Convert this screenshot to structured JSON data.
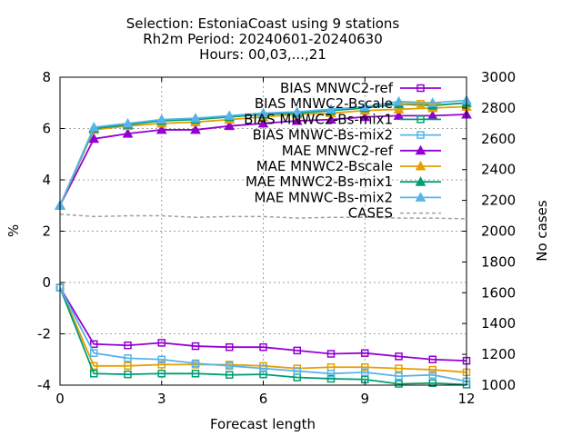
{
  "title": {
    "line1": "Selection: EstoniaCoast using     9 stations",
    "line2": "Rh2m   Period: 20240601-20240630",
    "line3": "Hours: 00,03,...,21"
  },
  "chart_data": {
    "type": "line",
    "xlabel": "Forecast length",
    "ylabel": "%",
    "y2label": "No cases",
    "xlim": [
      0,
      12
    ],
    "ylim": [
      -4,
      8
    ],
    "y2lim": [
      1000,
      3000
    ],
    "xticks": [
      0,
      3,
      6,
      9,
      12
    ],
    "yticks": [
      -4,
      -2,
      0,
      2,
      4,
      6,
      8
    ],
    "y2ticks": [
      1000,
      1200,
      1400,
      1600,
      1800,
      2000,
      2200,
      2400,
      2600,
      2800,
      3000
    ],
    "grid": true,
    "legend_position": "top-right",
    "x": [
      0,
      1,
      2,
      3,
      4,
      5,
      6,
      7,
      8,
      9,
      10,
      11,
      12
    ],
    "series": [
      {
        "name": "BIAS MNWC2-ref",
        "color": "#9400d3",
        "marker": "square",
        "axis": "y",
        "values": [
          -0.2,
          -2.4,
          -2.45,
          -2.35,
          -2.48,
          -2.52,
          -2.52,
          -2.65,
          -2.78,
          -2.75,
          -2.88,
          -3.0,
          -3.05
        ]
      },
      {
        "name": "BIAS MNWC2-Bscale",
        "color": "#e69f00",
        "marker": "square",
        "axis": "y",
        "values": [
          -0.2,
          -3.25,
          -3.25,
          -3.2,
          -3.2,
          -3.2,
          -3.25,
          -3.35,
          -3.3,
          -3.3,
          -3.35,
          -3.4,
          -3.5
        ]
      },
      {
        "name": "BIAS MNWC2-Bs-mix1",
        "color": "#009e73",
        "marker": "square",
        "axis": "y",
        "values": [
          -0.2,
          -3.55,
          -3.58,
          -3.55,
          -3.55,
          -3.6,
          -3.58,
          -3.7,
          -3.75,
          -3.78,
          -3.95,
          -3.92,
          -3.98
        ]
      },
      {
        "name": "BIAS MNWC-Bs-mix2",
        "color": "#56b4e9",
        "marker": "square",
        "axis": "y",
        "values": [
          -0.2,
          -2.75,
          -2.95,
          -3.0,
          -3.15,
          -3.25,
          -3.35,
          -3.45,
          -3.55,
          -3.5,
          -3.65,
          -3.6,
          -3.85
        ]
      },
      {
        "name": "MAE MNWC2-ref",
        "color": "#9400d3",
        "marker": "triangle",
        "axis": "y",
        "values": [
          3.0,
          5.6,
          5.8,
          5.95,
          5.95,
          6.1,
          6.2,
          6.3,
          6.35,
          6.45,
          6.5,
          6.5,
          6.55
        ]
      },
      {
        "name": "MAE MNWC2-Bscale",
        "color": "#e69f00",
        "marker": "triangle",
        "axis": "y",
        "values": [
          3.0,
          5.95,
          6.1,
          6.2,
          6.25,
          6.35,
          6.45,
          6.55,
          6.6,
          6.7,
          6.75,
          6.8,
          6.85
        ]
      },
      {
        "name": "MAE MNWC2-Bs-mix1",
        "color": "#009e73",
        "marker": "triangle",
        "axis": "y",
        "values": [
          3.0,
          6.0,
          6.15,
          6.3,
          6.35,
          6.45,
          6.55,
          6.6,
          6.7,
          6.8,
          6.95,
          6.9,
          7.0
        ]
      },
      {
        "name": "MAE MNWC-Bs-mix2",
        "color": "#56b4e9",
        "marker": "triangle",
        "axis": "y",
        "values": [
          3.0,
          6.05,
          6.2,
          6.35,
          6.4,
          6.5,
          6.6,
          6.65,
          6.75,
          6.85,
          7.05,
          7.0,
          7.1
        ]
      },
      {
        "name": "CASES",
        "color": "#a0a0a0",
        "marker": "none",
        "dashed": true,
        "axis": "y2",
        "values": [
          2110,
          2095,
          2100,
          2100,
          2090,
          2095,
          2095,
          2085,
          2090,
          2090,
          2085,
          2085,
          2080
        ]
      }
    ]
  }
}
